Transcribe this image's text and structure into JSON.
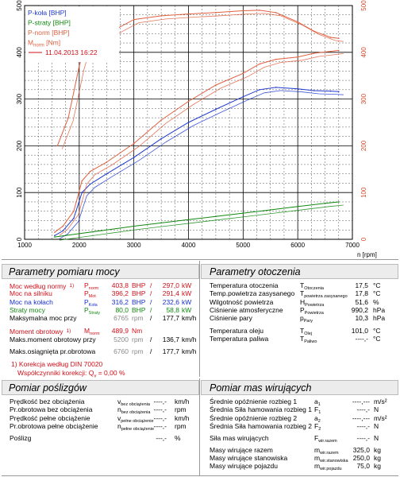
{
  "chart_data": {
    "type": "line",
    "title": "",
    "xlabel": "n [rpm]",
    "ylabel_left": "",
    "ylabel_right": "",
    "x_ticks": [
      "1000",
      "2000",
      "3000",
      "4000",
      "5000",
      "6000",
      "7000"
    ],
    "y_left_ticks": [
      "0",
      "100",
      "200",
      "300",
      "400",
      "500"
    ],
    "y_right_ticks": [
      "0",
      "100",
      "200",
      "300",
      "400",
      "500"
    ],
    "xlim": [
      1000,
      7000
    ],
    "ylim_left": [
      0,
      500
    ],
    "ylim_right": [
      0,
      500
    ],
    "legend_position": "top-left",
    "grid": true,
    "series": [
      {
        "name": "P-koła [BHP]",
        "color": "#1f3ad0",
        "axis": "left",
        "x": [
          1550,
          1700,
          1900,
          2050,
          2200,
          2500,
          3000,
          3500,
          4000,
          4500,
          5000,
          5300,
          5600,
          6000,
          6300,
          6600,
          6750
        ],
        "y": [
          8,
          18,
          45,
          100,
          118,
          140,
          175,
          215,
          250,
          278,
          305,
          320,
          325,
          322,
          318,
          317,
          316
        ]
      },
      {
        "name": "P-straty [BHP]",
        "color": "#118a11",
        "axis": "left",
        "x": [
          1550,
          2000,
          2500,
          3000,
          3500,
          4000,
          4500,
          5000,
          5500,
          6000,
          6500,
          6750
        ],
        "y": [
          5,
          12,
          20,
          28,
          35,
          42,
          49,
          56,
          63,
          70,
          77,
          80
        ]
      },
      {
        "name": "P-norm [BHP]",
        "color": "#e06040",
        "axis": "left",
        "x": [
          1550,
          1700,
          1900,
          2050,
          2200,
          2500,
          3000,
          3500,
          4000,
          4500,
          5000,
          5300,
          5600,
          6000,
          6300,
          6600,
          6750
        ],
        "y": [
          15,
          28,
          60,
          125,
          145,
          165,
          205,
          255,
          295,
          330,
          355,
          375,
          385,
          390,
          398,
          402,
          404
        ]
      },
      {
        "name": "M_norm [Nm]",
        "color": "#e06040",
        "axis": "right",
        "x": [
          1600,
          1800,
          2000,
          2150,
          2300,
          2600,
          3000,
          3500,
          4000,
          4500,
          5000,
          5300,
          5600,
          6000,
          6300,
          6600,
          6750
        ],
        "y": [
          200,
          260,
          370,
          430,
          440,
          445,
          470,
          478,
          482,
          485,
          489,
          490,
          485,
          465,
          445,
          432,
          430
        ]
      }
    ],
    "legend": [
      {
        "label": "P-koła [BHP]",
        "color": "#1f3ad0"
      },
      {
        "label": "P-straty [BHP]",
        "color": "#118a11"
      },
      {
        "label": "P-norm [BHP]",
        "color": "#e06040"
      },
      {
        "label": "M",
        "sub": "norm",
        "after": " [Nm]",
        "color": "#e06040"
      },
      {
        "label": "11.04.2013 16:22",
        "color": "#d0101a",
        "line": true
      }
    ]
  },
  "sections": {
    "pomiar_mocy": "Parametry pomiaru mocy",
    "otoczenia": "Parametry otoczenia",
    "poslizgow": "Pomiar poślizgów",
    "mas": "Pomiar mas wirujących"
  },
  "moc": {
    "rows": [
      {
        "label": "Moc według normy",
        "mark": "1)",
        "sym": "P",
        "sub": "norm",
        "v1": "403,8",
        "u1": "BHP",
        "sep": "/",
        "v2": "297,0",
        "u2": "kW"
      },
      {
        "label": "Moc na silniku",
        "sym": "P",
        "sub": "Mot",
        "v1": "396,2",
        "u1": "BHP",
        "sep": "/",
        "v2": "291,4",
        "u2": "kW"
      },
      {
        "label": "Moc na kołach",
        "sym": "P",
        "sub": "Koła",
        "v1": "316,2",
        "u1": "BHP",
        "sep": "/",
        "v2": "232,6",
        "u2": "kW"
      },
      {
        "label": "Straty mocy",
        "sym": "P",
        "sub": "Straty",
        "v1": "80,0",
        "u1": "BHP",
        "sep": "/",
        "v2": "58,8",
        "u2": "kW"
      },
      {
        "label": "Maksymalna moc przy",
        "v1": "6765",
        "u1": "rpm",
        "sep": "/",
        "v2": "177,7",
        "u2": "km/h"
      }
    ],
    "moment": {
      "label": "Moment obrotowy",
      "mark": "1)",
      "sym": "M",
      "sub": "norm",
      "v1": "489,9",
      "u1": "Nm"
    },
    "rows2": [
      {
        "label": "Maks.moment obrotowy przy",
        "v1": "5200",
        "u1": "rpm",
        "sep": "/",
        "v2": "136,7",
        "u2": "km/h"
      },
      {
        "label": "Maks.osiągnięta pr.obrotowa",
        "v1": "6760",
        "u1": "rpm",
        "sep": "/",
        "v2": "177,7",
        "u2": "km/h"
      }
    ],
    "korekcja": "1) Korekcja według DIN 70020",
    "wspolczynniki": "Współczynniki korekcji: Q",
    "wspolczynniki_sub": "v",
    "wspolczynniki_val": " = 0,00 %"
  },
  "otoczenie": {
    "rows": [
      {
        "label": "Temperatura otoczenia",
        "sym": "T",
        "sub": "Otoczenia",
        "val": "17,5",
        "unit": "°C"
      },
      {
        "label": "Temp.powietrza zasysanego",
        "sym": "T",
        "sub": "powietrza zasysanego",
        "val": "17,8",
        "unit": "°C"
      },
      {
        "label": "Wilgotność powietrza",
        "sym": "H",
        "sub": "Powietrza",
        "val": "51,6",
        "unit": "%"
      },
      {
        "label": "Ciśnienie atmosferyczne",
        "sym": "P",
        "sub": "Powietrza",
        "val": "990,2",
        "unit": "hPa"
      },
      {
        "label": "Ciśnienie pary",
        "sym": "p",
        "sub": "Pary",
        "val": "10,3",
        "unit": "hPa"
      },
      {
        "label": "Temperatura oleju",
        "sym": "T",
        "sub": "Olej",
        "val": "101,0",
        "unit": "°C"
      },
      {
        "label": "Temperatura paliwa",
        "sym": "T",
        "sub": "Paliwo",
        "val": "----,-",
        "unit": "°C"
      }
    ]
  },
  "posl": {
    "rows": [
      {
        "label": "Prędkość bez obciążenia",
        "sym": "v",
        "sub": "bez obciążenia",
        "val": "----,-",
        "unit": "km/h"
      },
      {
        "label": "Pr.obrotowa bez obciążenia",
        "sym": "n",
        "sub": "bez obciążenia",
        "val": "----,-",
        "unit": "rpm"
      },
      {
        "label": "Prędkość pełne obciążenie",
        "sym": "v",
        "sub": "pełne obciążenie",
        "val": "----,-",
        "unit": "km/h"
      },
      {
        "label": "Pr.obrotowa pełne obciążenie",
        "sym": "n",
        "sub": "pełne obciążenie",
        "val": "----,-",
        "unit": "rpm"
      },
      {
        "label": "Poślizg",
        "sym": "",
        "sub": "",
        "val": "---,-",
        "unit": "%"
      }
    ]
  },
  "mas": {
    "rows": [
      {
        "label": "Średnie opóźnienie rozbieg 1",
        "sym": "a",
        "sub": "1",
        "val": "----,---",
        "unit": "m/s²"
      },
      {
        "label": "Średnia Siła hamowania rozbieg 1",
        "sym": "F",
        "sub": "1",
        "val": "----,-",
        "unit": "N"
      },
      {
        "label": "Średnie opóźnienie rozbieg 2",
        "sym": "a",
        "sub": "2",
        "val": "----,---",
        "unit": "m/s²"
      },
      {
        "label": "Średnia Siła hamowania rozbieg 2",
        "sym": "F",
        "sub": "2",
        "val": "----,-",
        "unit": "N"
      },
      {
        "label": "Siła mas wirujących",
        "sym": "F",
        "sub": "wir.razem",
        "val": "----,-",
        "unit": "N"
      },
      {
        "label": "Masy wirujące razem",
        "sym": "m",
        "sub": "wir.razem",
        "val": "325,0",
        "unit": "kg"
      },
      {
        "label": "Masy wirujące stanowiska",
        "sym": "m",
        "sub": "wir.stanowiska",
        "val": "250,0",
        "unit": "kg"
      },
      {
        "label": "Masy wirujące pojazdu",
        "sym": "m",
        "sub": "wir.pojazdu",
        "val": "75,0",
        "unit": "kg"
      }
    ]
  }
}
